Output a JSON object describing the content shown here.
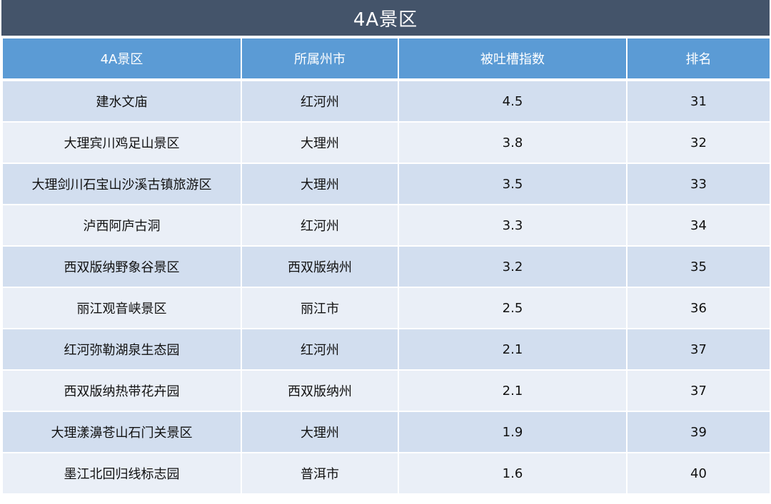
{
  "title": "4A景区",
  "table": {
    "headers": [
      "4A景区",
      "所属州市",
      "被吐槽指数",
      "排名"
    ],
    "rows": [
      [
        "建水文庙",
        "红河州",
        "4.5",
        "31"
      ],
      [
        "大理宾川鸡足山景区",
        "大理州",
        "3.8",
        "32"
      ],
      [
        "大理剑川石宝山沙溪古镇旅游区",
        "大理州",
        "3.5",
        "33"
      ],
      [
        "泸西阿庐古洞",
        "红河州",
        "3.3",
        "34"
      ],
      [
        "西双版纳野象谷景区",
        "西双版纳州",
        "3.2",
        "35"
      ],
      [
        "丽江观音峡景区",
        "丽江市",
        "2.5",
        "36"
      ],
      [
        "红河弥勒湖泉生态园",
        "红河州",
        "2.1",
        "37"
      ],
      [
        "西双版纳热带花卉园",
        "西双版纳州",
        "2.1",
        "37"
      ],
      [
        "大理漾濞苍山石门关景区",
        "大理州",
        "1.9",
        "39"
      ],
      [
        "墨江北回归线标志园",
        "普洱市",
        "1.6",
        "40"
      ]
    ]
  },
  "colors": {
    "title_bg": "#44546a",
    "header_bg": "#5b9bd5",
    "row_odd": "#d2deef",
    "row_even": "#eaeff7"
  }
}
